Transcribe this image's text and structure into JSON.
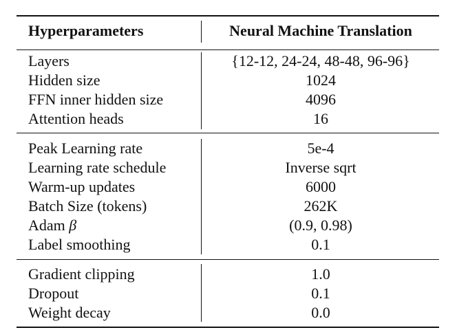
{
  "header": {
    "col1": "Hyperparameters",
    "col2": "Neural Machine Translation"
  },
  "sections": [
    {
      "rows": [
        {
          "name": "Layers",
          "value": "{12-12, 24-24, 48-48, 96-96}"
        },
        {
          "name": "Hidden size",
          "value": "1024"
        },
        {
          "name": "FFN inner hidden size",
          "value": "4096"
        },
        {
          "name": "Attention heads",
          "value": "16"
        }
      ]
    },
    {
      "rows": [
        {
          "name": "Peak Learning rate",
          "value": "5e-4"
        },
        {
          "name": "Learning rate schedule",
          "value": "Inverse sqrt"
        },
        {
          "name": "Warm-up updates",
          "value": "6000"
        },
        {
          "name": "Batch Size (tokens)",
          "value": "262K"
        },
        {
          "name": "Adam",
          "symbol": "β",
          "value": "(0.9, 0.98)"
        },
        {
          "name": "Label smoothing",
          "value": "0.1"
        }
      ]
    },
    {
      "rows": [
        {
          "name": "Gradient clipping",
          "value": "1.0"
        },
        {
          "name": "Dropout",
          "value": "0.1"
        },
        {
          "name": "Weight decay",
          "value": "0.0"
        }
      ]
    }
  ]
}
